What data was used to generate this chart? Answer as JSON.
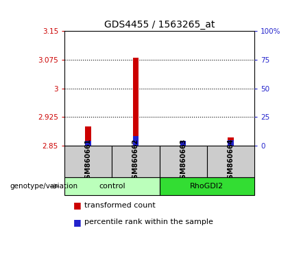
{
  "title": "GDS4455 / 1563265_at",
  "samples": [
    "GSM860661",
    "GSM860662",
    "GSM860663",
    "GSM860664"
  ],
  "group_labels": [
    "control",
    "RhoGDI2"
  ],
  "ylim": [
    2.85,
    3.15
  ],
  "yticks": [
    2.85,
    2.925,
    3.0,
    3.075,
    3.15
  ],
  "ytick_labels": [
    "2.85",
    "2.925",
    "3",
    "3.075",
    "3.15"
  ],
  "right_ytick_percents": [
    0,
    25,
    50,
    75,
    100
  ],
  "right_ytick_labels": [
    "0",
    "25",
    "50",
    "75",
    "100%"
  ],
  "red_bar_tops": [
    2.9,
    3.08,
    2.854,
    2.872
  ],
  "blue_bar_tops": [
    2.862,
    2.874,
    2.863,
    2.864
  ],
  "bar_width": 0.12,
  "red_color": "#cc0000",
  "blue_color": "#2222cc",
  "sample_bg_color": "#cccccc",
  "control_group_color": "#bbffbb",
  "rhogdi2_group_color": "#33dd33",
  "title_fontsize": 10,
  "tick_fontsize": 7.5,
  "legend_fontsize": 8
}
